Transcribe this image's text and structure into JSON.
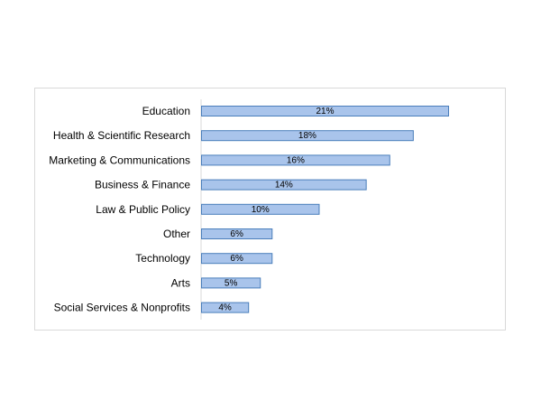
{
  "chart_data": {
    "type": "bar",
    "orientation": "horizontal",
    "categories": [
      "Education",
      "Health & Scientific Research",
      "Marketing & Communications",
      "Business & Finance",
      "Law & Public Policy",
      "Other",
      "Technology",
      "Arts",
      "Social Services & Nonprofits"
    ],
    "values": [
      21,
      18,
      16,
      14,
      10,
      6,
      6,
      5,
      4
    ],
    "data_labels": [
      "21%",
      "18%",
      "16%",
      "14%",
      "10%",
      "6%",
      "6%",
      "5%",
      "4%"
    ],
    "unit": "%",
    "xlim": [
      0,
      21
    ],
    "grid": false,
    "legend": "none",
    "colors": {
      "bar_fill": "#a9c4eb",
      "bar_stroke": "#4a7ebb",
      "axis": "#d9d9d9",
      "frame": "#d9d9d9"
    }
  }
}
